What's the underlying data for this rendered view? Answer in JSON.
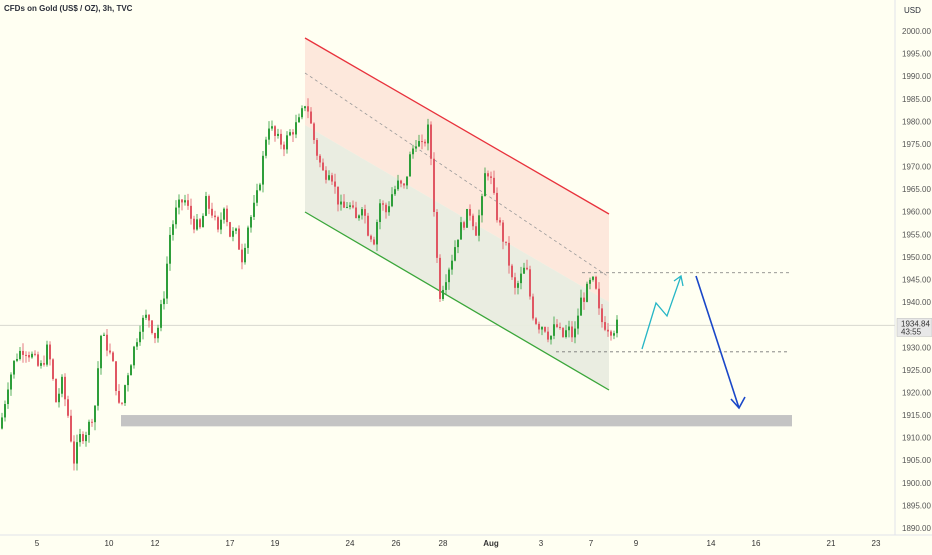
{
  "chart_data": {
    "type": "candlestick",
    "title": "CFDs on Gold (US$ / OZ), 3h, TVC",
    "currency": "USD",
    "ylim": [
      1888,
      2006
    ],
    "y_ticks": [
      1890,
      1895,
      1900,
      1905,
      1910,
      1915,
      1920,
      1925,
      1930,
      1935,
      1940,
      1945,
      1950,
      1955,
      1960,
      1965,
      1970,
      1975,
      1980,
      1985,
      1990,
      1995,
      2000
    ],
    "y_tick_labels": [
      "1890.00",
      "1895.00",
      "1900.00",
      "1905.00",
      "1910.00",
      "1915.00",
      "1920.00",
      "1925.00",
      "1930.00",
      "1935.00",
      "1940.00",
      "1945.00",
      "1950.00",
      "1955.00",
      "1960.00",
      "1965.00",
      "1970.00",
      "1975.00",
      "1980.00",
      "1985.00",
      "1990.00",
      "1995.00",
      "2000.00"
    ],
    "x_tick_labels": [
      "5",
      "10",
      "12",
      "17",
      "19",
      "24",
      "26",
      "28",
      "Aug",
      "3",
      "7",
      "9",
      "14",
      "16",
      "21",
      "23"
    ],
    "current_price": "1934.84",
    "countdown": "43:55",
    "colors": {
      "up": "#26a69a",
      "down": "#ef5350",
      "candle_up": "#2e9e3a",
      "candle_down": "#e05763",
      "channel_top": "#e8323c",
      "channel_bottom": "#3aa63a",
      "support": "#c4c4c4",
      "arrow_up": "#26b6c6",
      "arrow_down": "#1a47c8"
    },
    "support_zone": [
      1912.5,
      1915
    ],
    "channel": {
      "top_start": [
        0,
        1999
      ],
      "top_end": [
        1,
        1960
      ],
      "bottom_start": [
        0,
        1960
      ],
      "bottom_end": [
        1,
        1920.5
      ]
    },
    "targets": {
      "upper": 1946.5,
      "lower": 1929
    },
    "candles": []
  }
}
